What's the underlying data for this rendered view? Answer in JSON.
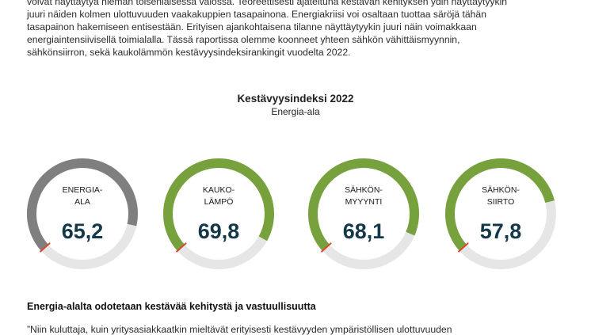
{
  "intro": {
    "lines": [
      "voivat näyttäytyä hieman toisenlaisessa valossa. Teoreettisesti ajateltuna kestävän kehityksen ydin näyttäytyykin",
      "juuri näiden kolmen ulottuvuuden vaakakuppien tasapainona. Energiakriisi voi osaltaan tuottaa säröjä tähän",
      "tasapainon hakemiseen entisestään. Erityisen ajankohtaisena tilanne näyttäytyykin juuri näin voimakkaan",
      "energiaintensiivisellä toimialalla. Tässä raportissa olemme koonneet yhteen sähkön vähittäismyynnin,",
      "sähkönsiirron, sekä kaukolämmön kestävyysindeksirankingit vuodelta 2022."
    ]
  },
  "chart_data": {
    "type": "gauge",
    "title": "Kestävyysindeksi 2022",
    "subtitle": "Energia-ala",
    "max": 100,
    "items": [
      {
        "label_lines": [
          "ENERGIA-",
          "ALA"
        ],
        "value": 65.2,
        "value_text": "65,2",
        "color": "#7f7f7f"
      },
      {
        "label_lines": [
          "KAUKO-",
          "LÄMPÖ"
        ],
        "value": 69.8,
        "value_text": "69,8",
        "color": "#77a13c"
      },
      {
        "label_lines": [
          "SÄHKÖN-",
          "MYYYNTI"
        ],
        "value": 68.1,
        "value_text": "68,1",
        "color": "#77a13c"
      },
      {
        "label_lines": [
          "SÄHKÖN-",
          "SIIRTO"
        ],
        "value": 57.8,
        "value_text": "57,8",
        "color": "#77a13c"
      }
    ],
    "track_color": "#e6e6e6",
    "marker_color": "#d94a2b"
  },
  "section": {
    "heading": "Energia-alalta odotetaan kestävää kehitystä ja vastuullisuutta",
    "next_line": "”Niin kuluttaja, kuin yritysasiakkaatkin mieltävät erityisesti kestävyyden ympäristöllisen ulottuvuuden"
  }
}
